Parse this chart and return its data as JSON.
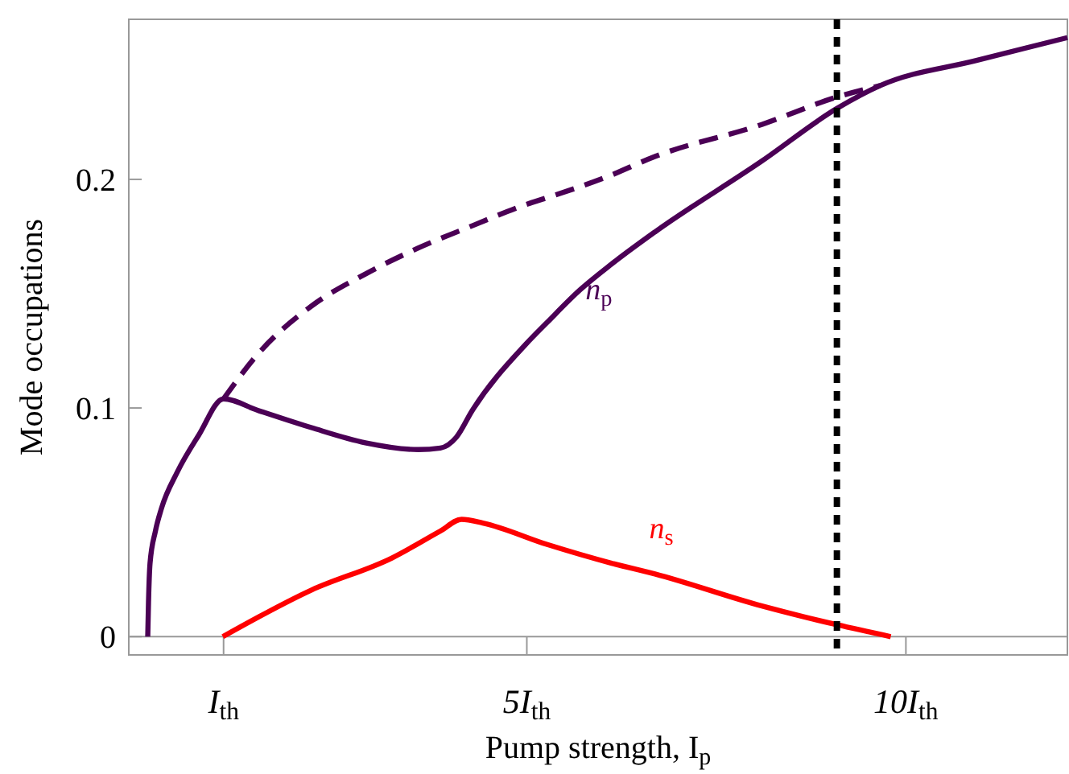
{
  "chart_data": {
    "type": "line",
    "xlabel": "Pump strength, I$_{p}$",
    "ylabel": "Mode occupations",
    "xlim": [
      -0.25,
      12.13
    ],
    "ylim": [
      -0.008,
      0.27
    ],
    "xticks": [
      {
        "value": 1,
        "label": "I$_{th}$"
      },
      {
        "value": 5,
        "label": "5I$_{th}$"
      },
      {
        "value": 10,
        "label": "10I$_{th}$"
      }
    ],
    "yticks": [
      0,
      0.1,
      0.2
    ],
    "series": [
      {
        "name": "n$_{p}$",
        "color": "#4b0055",
        "line_style": "solid",
        "x": [
          0,
          0.01,
          0.03,
          0.1,
          0.18,
          0.39,
          0.67,
          1,
          1.45,
          2.16,
          2.87,
          3.57,
          3.86,
          4.07,
          4.28,
          4.99,
          5.27,
          5.7,
          6.12,
          6.69,
          8.1,
          9.09,
          9.66,
          10.93,
          12.13
        ],
        "values": [
          0,
          0.015,
          0.032,
          0.046,
          0.056,
          0.072,
          0.088,
          0.104,
          0.099,
          0.0914,
          0.0848,
          0.0818,
          0.0825,
          0.0872,
          0.0989,
          0.128,
          0.1375,
          0.1516,
          0.163,
          0.177,
          0.208,
          0.231,
          0.241,
          0.252,
          0.262
        ]
      },
      {
        "color": "#4b0055",
        "line_style": "dashed",
        "x": [
          1,
          1.45,
          2.16,
          2.87,
          3.57,
          4.28,
          4.99,
          5.27,
          6.05,
          6.69,
          8.1,
          9.09,
          9.66
        ],
        "values": [
          0.104,
          0.1235,
          0.1446,
          0.1586,
          0.17,
          0.1797,
          0.189,
          0.192,
          0.201,
          0.21,
          0.224,
          0.236,
          0.241
        ]
      },
      {
        "name": "n$_{s}$",
        "color": "#ff0000",
        "line_style": "solid",
        "x": [
          0.99,
          2.16,
          3.22,
          3.86,
          4.14,
          4.42,
          5.27,
          6.12,
          6.69,
          8.1,
          9.09,
          9.8
        ],
        "values": [
          0,
          0.0204,
          0.0344,
          0.0462,
          0.0513,
          0.0497,
          0.0403,
          0.0321,
          0.0274,
          0.0134,
          0.0052,
          0
        ]
      }
    ],
    "ref_lines": [
      {
        "axis": "x",
        "value": 9.09,
        "color": "#000000",
        "line_style": "dotted"
      }
    ]
  }
}
